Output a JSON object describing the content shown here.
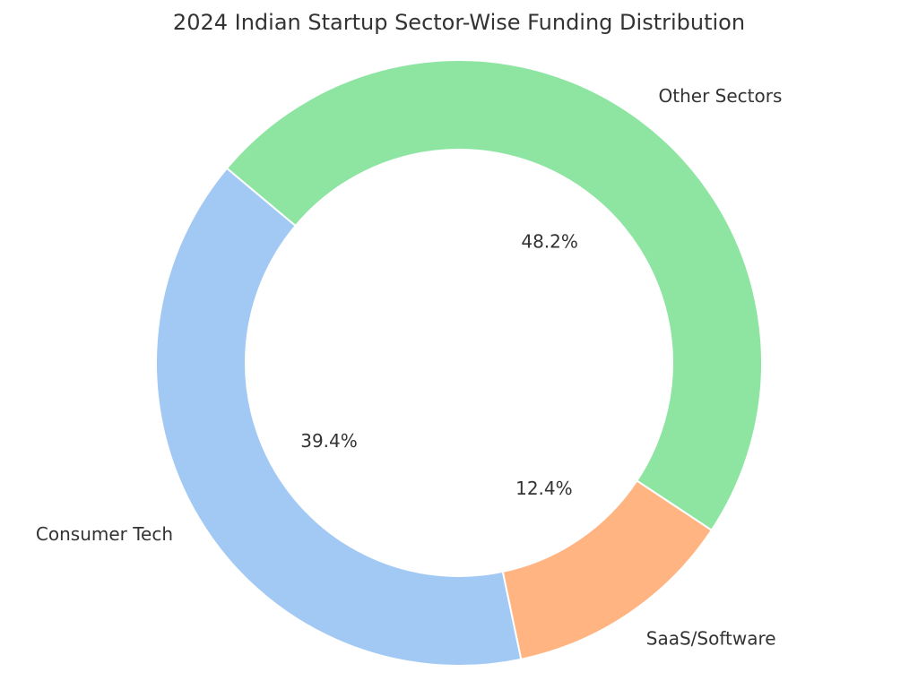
{
  "chart_data": {
    "type": "pie",
    "style": "donut",
    "title": "2024 Indian Startup Sector-Wise Funding Distribution",
    "slices": [
      {
        "label": "Consumer Tech",
        "value": 39.4,
        "pct_label": "39.4%",
        "color": "#a1c9f4"
      },
      {
        "label": "SaaS/Software",
        "value": 12.4,
        "pct_label": "12.4%",
        "color": "#ffb482"
      },
      {
        "label": "Other Sectors",
        "value": 48.2,
        "pct_label": "48.2%",
        "color": "#8de5a1"
      }
    ],
    "edge_color": "#ffffff"
  }
}
